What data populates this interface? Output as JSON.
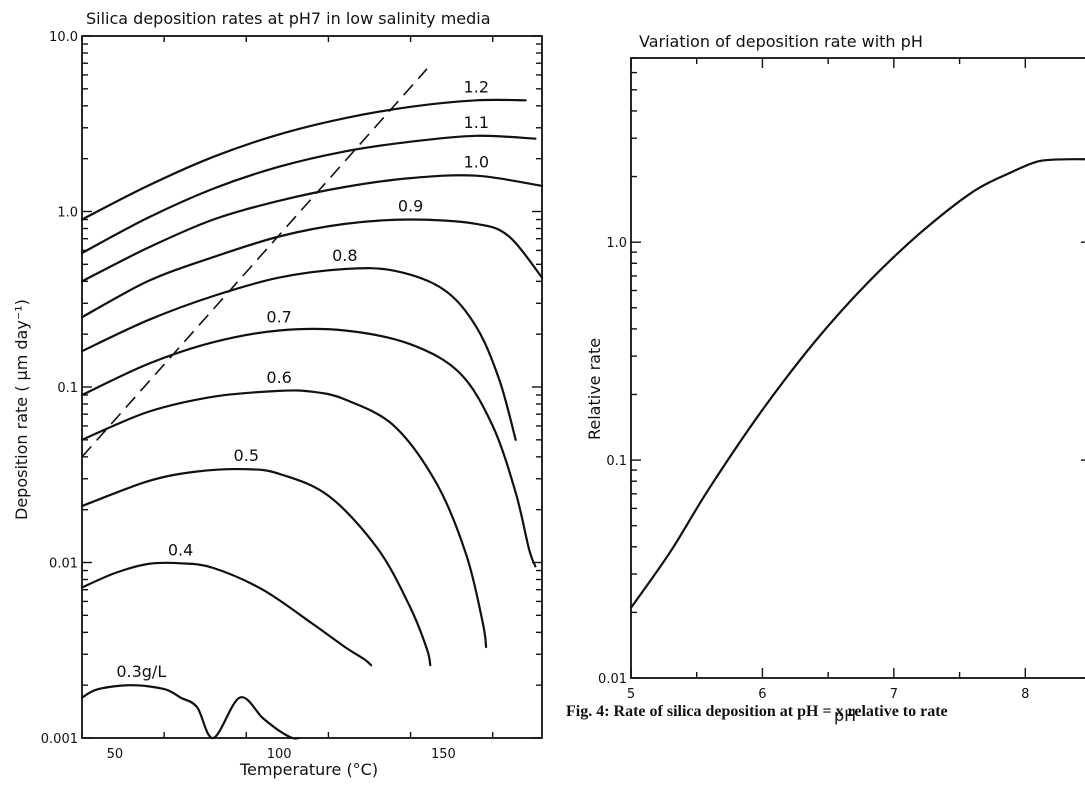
{
  "caption": "Fig. 4:  Rate of silica deposition at pH = x relative to rate",
  "chart_data": [
    {
      "type": "line",
      "title": "Silica deposition rates at pH7 in low salinity media",
      "xlabel": "Temperature (°C)",
      "ylabel": "Deposition rate ( μm day⁻¹)",
      "xscale": "linear",
      "yscale": "log",
      "xlim": [
        40,
        180
      ],
      "ylim": [
        0.001,
        10
      ],
      "xticks": [
        50,
        100,
        150
      ],
      "xtick_labels": [
        "50",
        "100",
        "150"
      ],
      "yticks": [
        0.001,
        0.01,
        0.1,
        1,
        10
      ],
      "ytick_labels": [
        "0.001",
        "0.01",
        "0.1",
        "1.0",
        "10.0"
      ],
      "grid": false,
      "series": [
        {
          "name": "1.2",
          "x": [
            40,
            60,
            80,
            100,
            120,
            140,
            160,
            175
          ],
          "y": [
            0.9,
            1.4,
            2.05,
            2.75,
            3.4,
            3.95,
            4.3,
            4.3
          ]
        },
        {
          "name": "1.1",
          "x": [
            40,
            60,
            80,
            100,
            120,
            140,
            160,
            178
          ],
          "y": [
            0.58,
            0.92,
            1.35,
            1.8,
            2.2,
            2.5,
            2.7,
            2.6
          ]
        },
        {
          "name": "1.0",
          "x": [
            40,
            60,
            80,
            100,
            120,
            140,
            160,
            180
          ],
          "y": [
            0.4,
            0.62,
            0.9,
            1.15,
            1.38,
            1.55,
            1.6,
            1.4
          ]
        },
        {
          "name": "0.9",
          "x": [
            40,
            60,
            80,
            100,
            120,
            140,
            160,
            170,
            180
          ],
          "y": [
            0.25,
            0.4,
            0.55,
            0.72,
            0.85,
            0.9,
            0.85,
            0.72,
            0.42
          ]
        },
        {
          "name": "0.8",
          "x": [
            40,
            60,
            80,
            100,
            120,
            135,
            150,
            160,
            167,
            172
          ],
          "y": [
            0.16,
            0.24,
            0.33,
            0.42,
            0.47,
            0.46,
            0.36,
            0.22,
            0.11,
            0.05
          ]
        },
        {
          "name": "0.7",
          "x": [
            40,
            60,
            80,
            100,
            120,
            140,
            155,
            165,
            172,
            176,
            178
          ],
          "y": [
            0.09,
            0.135,
            0.18,
            0.21,
            0.21,
            0.175,
            0.12,
            0.06,
            0.025,
            0.012,
            0.0095
          ]
        },
        {
          "name": "0.6",
          "x": [
            40,
            60,
            80,
            100,
            110,
            120,
            135,
            148,
            157,
            162,
            163
          ],
          "y": [
            0.05,
            0.072,
            0.088,
            0.095,
            0.094,
            0.085,
            0.06,
            0.028,
            0.011,
            0.0045,
            0.0033
          ]
        },
        {
          "name": "0.5",
          "x": [
            40,
            60,
            75,
            90,
            100,
            115,
            130,
            140,
            145,
            146
          ],
          "y": [
            0.021,
            0.029,
            0.033,
            0.034,
            0.032,
            0.024,
            0.012,
            0.0055,
            0.0032,
            0.0026
          ]
        },
        {
          "name": "0.4",
          "x": [
            40,
            50,
            60,
            70,
            80,
            95,
            110,
            120,
            126,
            128
          ],
          "y": [
            0.0072,
            0.0087,
            0.0098,
            0.0099,
            0.0093,
            0.007,
            0.0045,
            0.0033,
            0.0028,
            0.0026
          ]
        },
        {
          "name": "0.3g/L",
          "x": [
            40,
            45,
            55,
            65,
            70,
            75,
            80,
            88,
            95,
            100,
            104,
            106
          ],
          "y": [
            0.0017,
            0.0019,
            0.002,
            0.0019,
            0.0017,
            0.0015,
            0.001,
            0.0017,
            0.0013,
            0.0011,
            0.001,
            0.001
          ]
        }
      ],
      "dashed_line": {
        "x": [
          40,
          145
        ],
        "y": [
          0.04,
          6.5
        ]
      }
    },
    {
      "type": "line",
      "title": "Variation of deposition rate with pH",
      "xlabel": "pH",
      "ylabel": "Relative rate",
      "xscale": "linear",
      "yscale": "log",
      "xlim": [
        5,
        8.5
      ],
      "ylim": [
        0.01,
        7
      ],
      "xticks": [
        5,
        6,
        7,
        8
      ],
      "xtick_labels": [
        "5",
        "6",
        "7",
        "8"
      ],
      "yticks": [
        0.01,
        0.1,
        1
      ],
      "ytick_labels": [
        "0.01",
        "0.1",
        "1.0"
      ],
      "grid": false,
      "series": [
        {
          "x": [
            5.0,
            5.3,
            5.6,
            6.0,
            6.4,
            6.8,
            7.2,
            7.6,
            7.9,
            8.1,
            8.3,
            8.5
          ],
          "y": [
            0.021,
            0.038,
            0.075,
            0.17,
            0.35,
            0.65,
            1.1,
            1.7,
            2.1,
            2.35,
            2.4,
            2.4
          ]
        }
      ]
    }
  ]
}
